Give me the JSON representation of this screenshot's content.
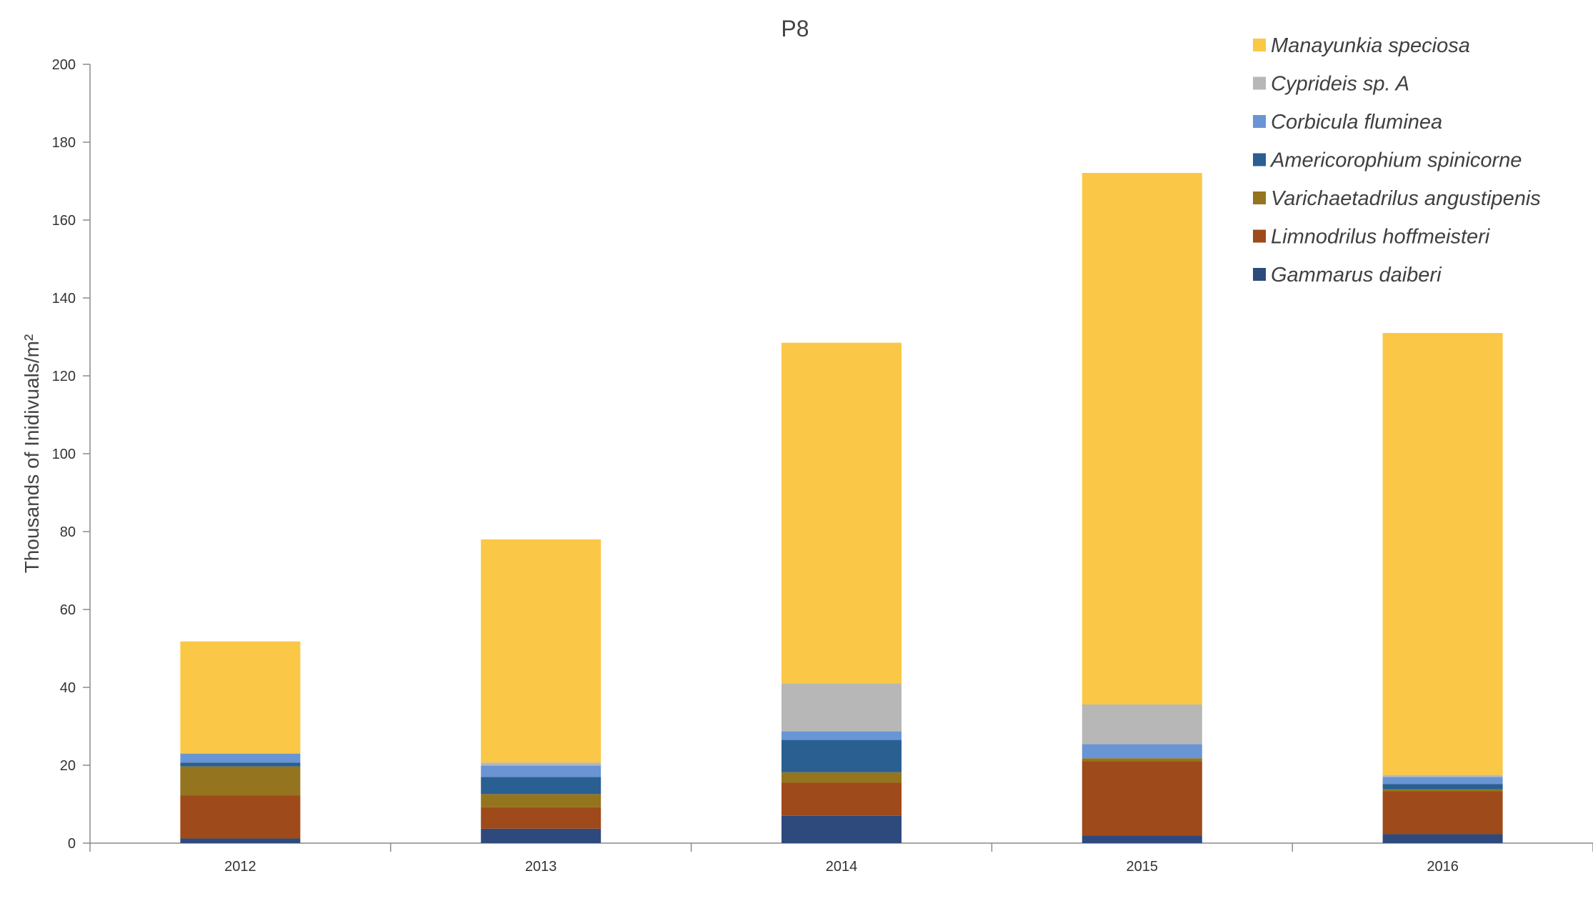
{
  "chart_data": {
    "type": "bar",
    "stacked": true,
    "title": "P8",
    "xlabel": "",
    "ylabel": "Thousands of Inidivuals/m²",
    "ylim": [
      0,
      200
    ],
    "yticks": [
      0,
      20,
      40,
      60,
      80,
      100,
      120,
      140,
      160,
      180,
      200
    ],
    "categories": [
      "2012",
      "2013",
      "2014",
      "2015",
      "2016"
    ],
    "grid": false,
    "legend_position": "top-right",
    "series": [
      {
        "name": "Gammarus daiberi",
        "color": "#2E4A7D",
        "values": [
          1.2,
          3.7,
          7.0,
          2.0,
          2.3
        ]
      },
      {
        "name": "Limnodrilus hoffmeisteri",
        "color": "#9E4A1A",
        "values": [
          11.0,
          5.5,
          8.5,
          19.0,
          11.0
        ]
      },
      {
        "name": "Varichaetadrilus angustipenis",
        "color": "#94741E",
        "values": [
          7.5,
          3.4,
          2.7,
          0.8,
          0.5
        ]
      },
      {
        "name": "Americorophium spinicorne",
        "color": "#2A5F92",
        "values": [
          1.0,
          4.4,
          8.3,
          0.0,
          1.4
        ]
      },
      {
        "name": "Corbicula fluminea",
        "color": "#6A95D4",
        "values": [
          2.3,
          2.9,
          2.2,
          3.6,
          1.8
        ]
      },
      {
        "name": "Cyprideis sp. A",
        "color": "#B7B7B7",
        "values": [
          0.0,
          0.8,
          12.3,
          10.2,
          0.5
        ]
      },
      {
        "name": "Manayunkia speciosa",
        "color": "#FAC846",
        "values": [
          28.8,
          57.3,
          87.5,
          136.5,
          113.5
        ]
      }
    ]
  }
}
